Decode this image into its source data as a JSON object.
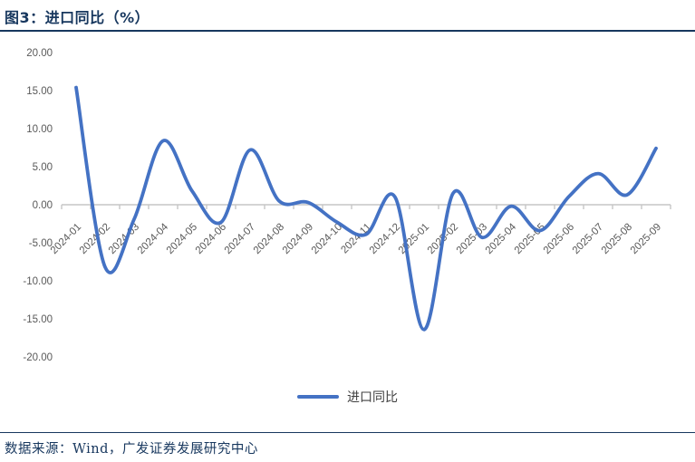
{
  "figure": {
    "title": "图3：进口同比（%）",
    "source": "数据来源：Wind，广发证券发展研究中心"
  },
  "colors": {
    "accent_line": "#4472C4",
    "heading": "#17375E",
    "axis": "#C6C6C6",
    "tick_label": "#595959"
  },
  "chart_data": {
    "type": "line",
    "title": "图3：进口同比（%）",
    "smooth": true,
    "grid": false,
    "legend_position": "bottom",
    "xlabel": "",
    "ylabel": "",
    "ylim": [
      -20,
      20
    ],
    "ytick_step": 5,
    "yticks": [
      {
        "value": 20,
        "label": "20.00"
      },
      {
        "value": 15,
        "label": "15.00"
      },
      {
        "value": 10,
        "label": "10.00"
      },
      {
        "value": 5,
        "label": "5.00"
      },
      {
        "value": 0,
        "label": "0.00"
      },
      {
        "value": -5,
        "label": "-5.00"
      },
      {
        "value": -10,
        "label": "-10.00"
      },
      {
        "value": -15,
        "label": "-15.00"
      },
      {
        "value": -20,
        "label": "-20.00"
      }
    ],
    "categories": [
      "2024-01",
      "2024-02",
      "2024-03",
      "2024-04",
      "2024-05",
      "2024-06",
      "2024-07",
      "2024-08",
      "2024-09",
      "2024-10",
      "2024-11",
      "2024-12",
      "2025-01",
      "2025-02",
      "2025-03",
      "2025-04",
      "2025-05",
      "2025-06",
      "2025-07",
      "2025-08",
      "2025-09"
    ],
    "series": [
      {
        "name": "进口同比",
        "color": "#4472C4",
        "values": [
          15.4,
          -8.2,
          -1.9,
          8.4,
          1.8,
          -2.3,
          7.2,
          0.5,
          0.3,
          -2.3,
          -3.9,
          1.0,
          -16.4,
          1.5,
          -4.3,
          -0.2,
          -3.4,
          1.1,
          4.1,
          1.3,
          7.4
        ]
      }
    ]
  }
}
